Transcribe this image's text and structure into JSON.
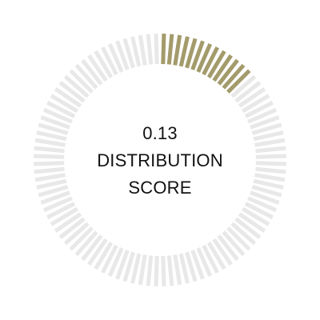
{
  "gauge": {
    "value": 0.13,
    "value_text": "0.13",
    "label_line1": "DISTRIBUTION",
    "label_line2": "SCORE",
    "tick_count": 100,
    "colors": {
      "filled": "#a39b6b",
      "empty": "#e8e8e8",
      "text": "#111111"
    }
  }
}
